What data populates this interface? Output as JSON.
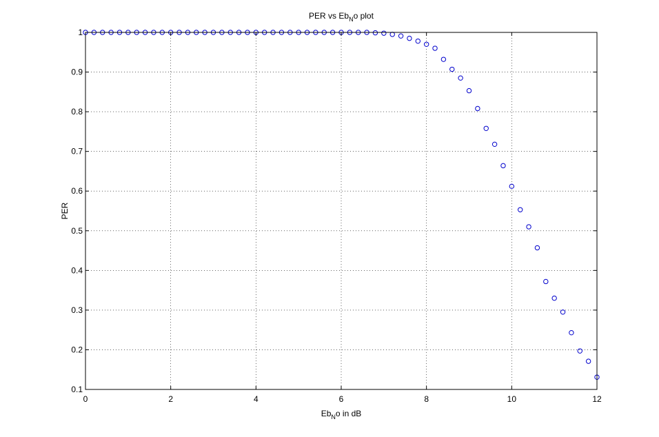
{
  "chart_data": {
    "type": "scatter",
    "title": {
      "pre": "PER vs Eb",
      "sub": "N",
      "post": "o plot"
    },
    "xlabel": {
      "pre": "Eb",
      "sub": "N",
      "post": "o in dB"
    },
    "ylabel": "PER",
    "xlim": [
      0,
      12
    ],
    "ylim": [
      0.1,
      1
    ],
    "xticks": [
      "0",
      "2",
      "4",
      "6",
      "8",
      "10",
      "12"
    ],
    "yticks": [
      "0.1",
      "0.2",
      "0.3",
      "0.4",
      "0.5",
      "0.6",
      "0.7",
      "0.8",
      "0.9",
      "1"
    ],
    "grid": true,
    "marker": "circle",
    "marker_color": "#0000cc",
    "x": [
      0,
      0.2,
      0.4,
      0.6,
      0.8,
      1.0,
      1.2,
      1.4,
      1.6,
      1.8,
      2.0,
      2.2,
      2.4,
      2.6,
      2.8,
      3.0,
      3.2,
      3.4,
      3.6,
      3.8,
      4.0,
      4.2,
      4.4,
      4.6,
      4.8,
      5.0,
      5.2,
      5.4,
      5.6,
      5.8,
      6.0,
      6.2,
      6.4,
      6.6,
      6.8,
      7.0,
      7.2,
      7.4,
      7.6,
      7.8,
      8.0,
      8.2,
      8.4,
      8.6,
      8.8,
      9.0,
      9.2,
      9.4,
      9.6,
      9.8,
      10.0,
      10.2,
      10.4,
      10.6,
      10.8,
      11.0,
      11.2,
      11.4,
      11.6,
      11.8,
      12.0
    ],
    "y": [
      1,
      1,
      1,
      1,
      1,
      1,
      1,
      1,
      1,
      1,
      1,
      1,
      1,
      1,
      1,
      1,
      1,
      1,
      1,
      1,
      1,
      1,
      1,
      1,
      1,
      1,
      1,
      1,
      1,
      1,
      1,
      1,
      1,
      1,
      0.999,
      0.998,
      0.995,
      0.991,
      0.985,
      0.978,
      0.97,
      0.96,
      0.932,
      0.907,
      0.885,
      0.853,
      0.808,
      0.758,
      0.718,
      0.664,
      0.612,
      0.553,
      0.51,
      0.457,
      0.372,
      0.33,
      0.295,
      0.243,
      0.197,
      0.171,
      0.131
    ]
  }
}
